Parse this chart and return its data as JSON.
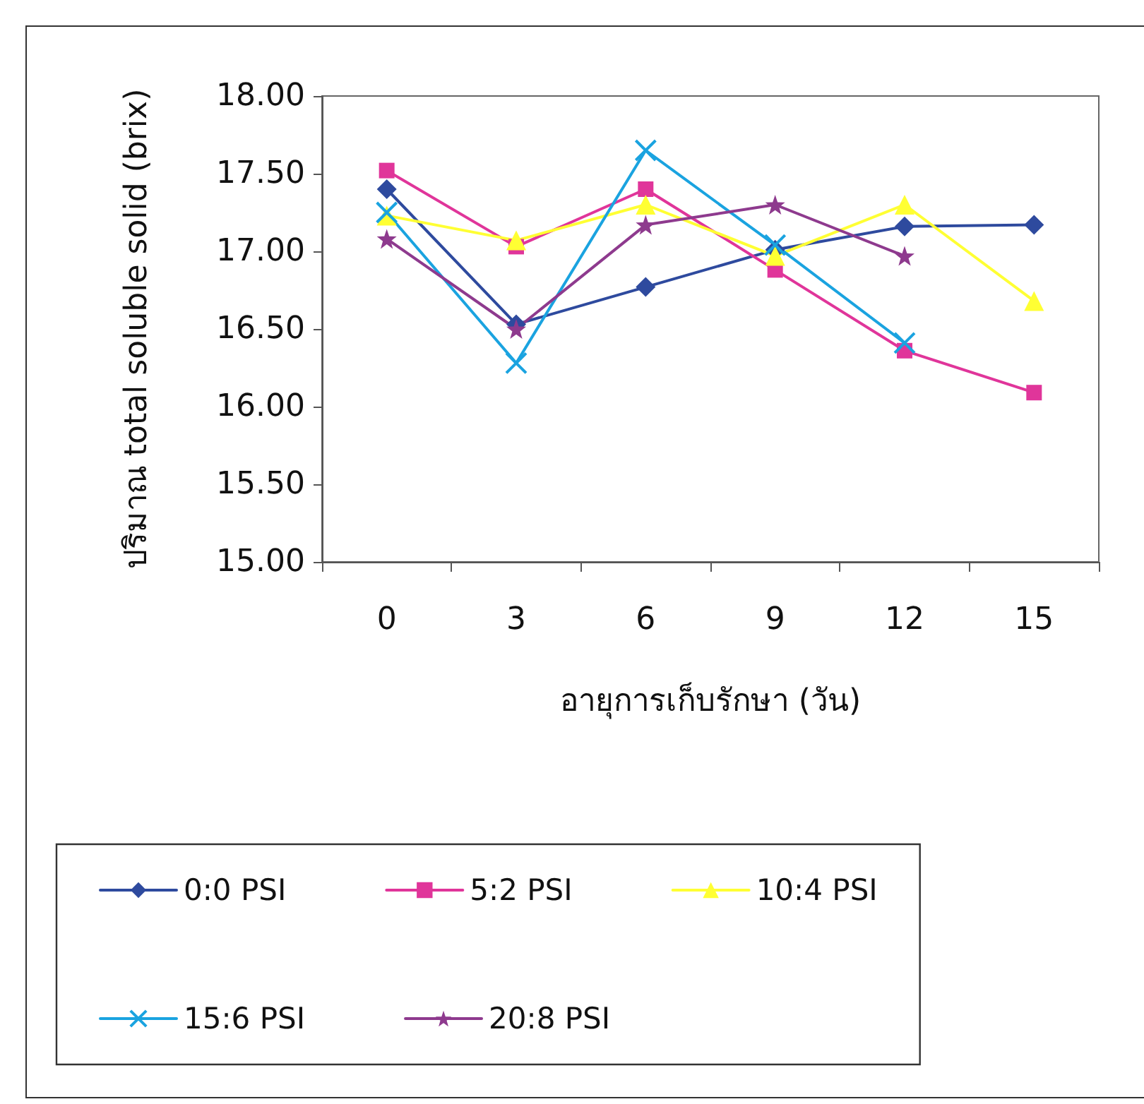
{
  "chart_data": {
    "type": "line",
    "xlabel": "อายุการเก็บรักษา (วัน)",
    "ylabel": "ปริมาณ total soluble solid (brix)",
    "categories": [
      "0",
      "3",
      "6",
      "9",
      "12",
      "15"
    ],
    "series": [
      {
        "name": "0:0 PSI",
        "color": "#2e4a9e",
        "marker": "diamond",
        "values": [
          17.4,
          16.53,
          16.77,
          17.01,
          17.16,
          17.17
        ]
      },
      {
        "name": "5:2 PSI",
        "color": "#e0359a",
        "marker": "square",
        "values": [
          17.52,
          17.03,
          17.4,
          16.88,
          16.36,
          16.09
        ]
      },
      {
        "name": "10:4 PSI",
        "color": "#ffff33",
        "marker": "triangle",
        "values": [
          17.23,
          17.07,
          17.3,
          16.97,
          17.3,
          16.68
        ]
      },
      {
        "name": "15:6 PSI",
        "color": "#1aa3e0",
        "marker": "cross",
        "values": [
          17.25,
          16.28,
          17.65,
          17.04,
          16.41,
          null
        ]
      },
      {
        "name": "20:8 PSI",
        "color": "#8e3a8e",
        "marker": "star",
        "values": [
          17.08,
          16.5,
          17.17,
          17.3,
          16.97,
          null
        ]
      }
    ],
    "ylim": [
      15,
      18
    ],
    "yticks": [
      {
        "value": 15,
        "label": "15.00"
      },
      {
        "value": 15.5,
        "label": "15.50"
      },
      {
        "value": 16,
        "label": "16.00"
      },
      {
        "value": 16.5,
        "label": "16.50"
      },
      {
        "value": 17,
        "label": "17.00"
      },
      {
        "value": 17.5,
        "label": "17.50"
      },
      {
        "value": 18,
        "label": "18.00"
      }
    ],
    "grid": false,
    "legend": "bottom"
  }
}
